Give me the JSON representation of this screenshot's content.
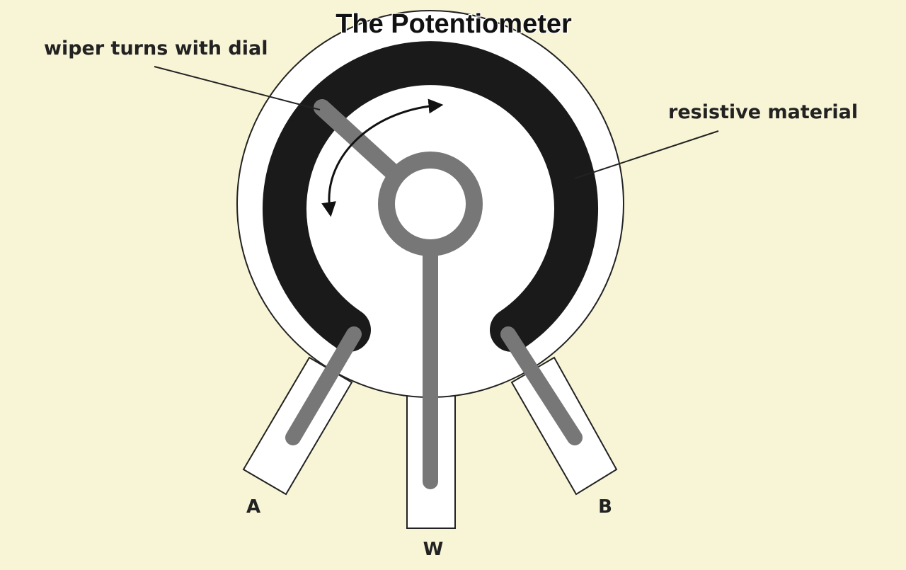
{
  "title": "The Potentiometer",
  "labels": {
    "wiper": "wiper turns with dial",
    "resistive": "resistive material"
  },
  "terminals": {
    "a": "A",
    "w": "W",
    "b": "B"
  },
  "colors": {
    "background": "#f8f4d6",
    "resistive_track": "#1a1a1a",
    "wiper_metal": "#777777",
    "body": "#ffffff",
    "outline": "#222222"
  }
}
